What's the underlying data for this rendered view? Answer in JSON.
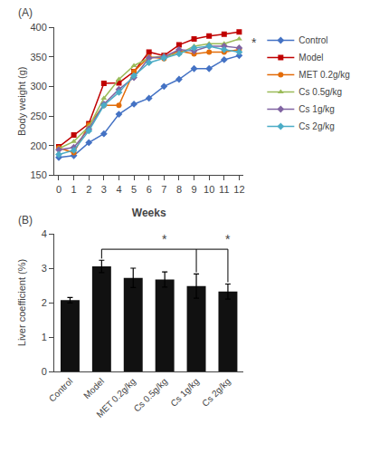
{
  "chart_data": [
    {
      "type": "line",
      "x": [
        0,
        1,
        2,
        3,
        4,
        5,
        6,
        7,
        8,
        9,
        10,
        11,
        12
      ],
      "series": [
        {
          "name": "Control",
          "color": "#4472C4",
          "marker": "diamond",
          "values": [
            180,
            183,
            205,
            220,
            253,
            270,
            280,
            300,
            312,
            330,
            330,
            345,
            352
          ]
        },
        {
          "name": "Model",
          "color": "#C00000",
          "marker": "square",
          "values": [
            198,
            218,
            237,
            305,
            306,
            325,
            358,
            352,
            370,
            380,
            385,
            388,
            392
          ]
        },
        {
          "name": "MET 0.2g/kg",
          "color": "#E36C09",
          "marker": "circle",
          "values": [
            196,
            188,
            235,
            268,
            268,
            325,
            350,
            347,
            360,
            355,
            358,
            358,
            362
          ]
        },
        {
          "name": "Cs 0.5g/kg",
          "color": "#9BBB59",
          "marker": "triangle-up",
          "values": [
            195,
            207,
            232,
            280,
            312,
            335,
            348,
            352,
            355,
            368,
            372,
            372,
            380
          ]
        },
        {
          "name": "Cs 1g/kg",
          "color": "#8064A2",
          "marker": "diamond",
          "values": [
            193,
            197,
            228,
            270,
            295,
            315,
            348,
            350,
            362,
            360,
            368,
            368,
            365
          ]
        },
        {
          "name": "Cs 2g/kg",
          "color": "#4BACC6",
          "marker": "diamond",
          "values": [
            185,
            192,
            225,
            268,
            290,
            318,
            340,
            348,
            355,
            365,
            368,
            362,
            358
          ]
        }
      ],
      "xlabel": "Weeks",
      "ylabel": "Body weight (g)",
      "xlim": [
        -0.3,
        12.3
      ],
      "xticks": [
        0,
        1,
        2,
        3,
        4,
        5,
        6,
        7,
        8,
        9,
        10,
        11,
        12
      ],
      "ylim": [
        150,
        400
      ],
      "yticks": [
        150,
        200,
        250,
        300,
        350,
        400
      ],
      "grid": false,
      "legend": "right",
      "annotations": [
        {
          "text": "(A)"
        },
        {
          "text": "*",
          "x": 12.7,
          "y": 373.5
        }
      ]
    },
    {
      "type": "bar",
      "categories": [
        "Control",
        "Model",
        "MET 0.2g/kg",
        "Cs 0.5g/kg",
        "Cs 1g/kg",
        "Cs 2g/kg"
      ],
      "values": [
        2.07,
        3.05,
        2.72,
        2.67,
        2.48,
        2.32
      ],
      "errors": [
        0.08,
        0.18,
        0.28,
        0.22,
        0.35,
        0.22
      ],
      "color": "#111111",
      "ylabel": "Liver coefficient (%)",
      "ylim": [
        0,
        4
      ],
      "yticks": [
        0,
        1,
        2,
        3,
        4
      ],
      "grid": false,
      "brackets": [
        {
          "x": [
            "Model",
            "Model",
            "Cs 2g/kg",
            "Cs 2g/kg"
          ],
          "y": [
            3.28,
            3.55,
            3.55,
            2.59
          ]
        },
        {
          "x": [
            "Cs 1g/kg",
            "Cs 1g/kg"
          ],
          "y": [
            3.55,
            2.88
          ]
        }
      ],
      "annotations": [
        {
          "text": "(B)"
        },
        {
          "text": "*",
          "x": "Cs 0.5g/kg",
          "y": 3.59
        },
        {
          "text": "*",
          "x": "Cs 2g/kg",
          "y": 3.59
        }
      ]
    }
  ]
}
